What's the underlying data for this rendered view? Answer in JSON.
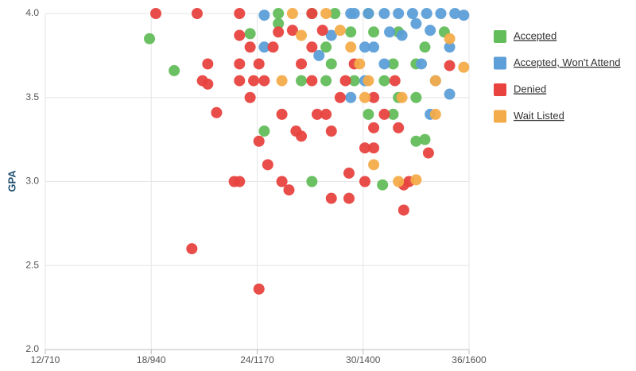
{
  "chart_data": {
    "type": "scatter",
    "y_label": "GPA",
    "xlim": [
      12,
      36
    ],
    "xticks": [
      {
        "value": 12,
        "label": "12/710"
      },
      {
        "value": 18,
        "label": "18/940"
      },
      {
        "value": 24,
        "label": "24/1170"
      },
      {
        "value": 30,
        "label": "30/1400"
      },
      {
        "value": 36,
        "label": "36/1600"
      }
    ],
    "ylim": [
      2,
      4
    ],
    "yticks": [
      {
        "value": 2,
        "label": "2.0"
      },
      2.5,
      {
        "value": 3,
        "label": "3.0"
      },
      3.5,
      {
        "value": 4,
        "label": "4.0"
      }
    ],
    "grid": true,
    "legend": "right",
    "series": [
      {
        "name": "Accepted",
        "color": "#62bd5a",
        "x": [
          17.9,
          19.3,
          24.4,
          27.1,
          23.6,
          25.2,
          27.1,
          28.4,
          30.3,
          26.5,
          27.9,
          25.2,
          27.9,
          28.2,
          29.5,
          30.3,
          31.1,
          31.7,
          33.0,
          33.5,
          32.0,
          33.0,
          33.0,
          31.7,
          31.2,
          33.5,
          34.6,
          32.0,
          30.6,
          29.3
        ],
        "y": [
          3.85,
          3.66,
          3.3,
          3.0,
          3.88,
          4.0,
          4.0,
          4.0,
          4.0,
          3.6,
          3.6,
          3.94,
          3.8,
          3.7,
          3.6,
          3.4,
          2.98,
          3.4,
          3.24,
          3.25,
          3.5,
          3.5,
          3.7,
          3.7,
          3.6,
          3.8,
          3.89,
          3.89,
          3.89,
          3.89
        ]
      },
      {
        "name": "Accepted, Won't Attend",
        "color": "#5d9fd8",
        "x": [
          24.4,
          24.4,
          29.3,
          30.1,
          31.2,
          32.0,
          32.8,
          33.6,
          34.4,
          35.2,
          35.7,
          31.2,
          30.3,
          29.5,
          32.2,
          33.0,
          33.8,
          34.9,
          34.9,
          34.1,
          33.8,
          28.2,
          27.5,
          30.6,
          29.3,
          30.1,
          33.3,
          31.5
        ],
        "y": [
          3.99,
          3.8,
          3.5,
          3.6,
          3.7,
          4.0,
          4.0,
          4.0,
          4.0,
          4.0,
          3.99,
          4.0,
          4.0,
          4.0,
          3.87,
          3.94,
          3.9,
          3.8,
          3.52,
          3.6,
          3.4,
          3.87,
          3.75,
          3.8,
          4.0,
          3.8,
          3.7,
          3.89
        ]
      },
      {
        "name": "Denied",
        "color": "#e8433f",
        "x": [
          18.26,
          20.6,
          23.0,
          20.3,
          24.1,
          22.7,
          23.0,
          21.7,
          21.2,
          20.9,
          21.2,
          23.0,
          23.6,
          24.1,
          24.6,
          25.4,
          25.8,
          25.4,
          26.2,
          26.5,
          28.2,
          29.2,
          28.2,
          29.2,
          30.1,
          30.1,
          30.6,
          30.6,
          32.3,
          32.3,
          32.6,
          33.7,
          32.0,
          23.0,
          23.6,
          24.1,
          24.4,
          24.9,
          25.2,
          26.0,
          26.5,
          27.1,
          27.4,
          27.9,
          28.7,
          29.0,
          29.5,
          27.7,
          27.1,
          30.6,
          31.2,
          31.8,
          34.9,
          27.1,
          23.8,
          23.0
        ],
        "y": [
          4.0,
          4.0,
          4.0,
          2.6,
          2.36,
          3.0,
          3.0,
          3.41,
          3.7,
          3.6,
          3.58,
          3.6,
          3.5,
          3.24,
          3.1,
          3.0,
          2.95,
          3.4,
          3.3,
          3.27,
          2.9,
          2.9,
          3.3,
          3.05,
          3.0,
          3.2,
          3.2,
          3.32,
          2.83,
          2.98,
          3.0,
          3.17,
          3.32,
          3.7,
          3.8,
          3.7,
          3.6,
          3.8,
          3.89,
          3.9,
          3.7,
          3.6,
          3.4,
          3.4,
          3.5,
          3.6,
          3.7,
          3.9,
          4.0,
          3.5,
          3.4,
          3.6,
          3.69,
          3.8,
          3.6,
          3.87
        ]
      },
      {
        "name": "Wait Listed",
        "color": "#f4ac4a",
        "x": [
          26.0,
          27.9,
          25.4,
          26.5,
          29.3,
          29.8,
          30.6,
          32.0,
          33.0,
          34.1,
          35.7,
          34.9,
          34.1,
          30.3,
          32.2,
          28.7,
          30.1
        ],
        "y": [
          4.0,
          4.0,
          3.6,
          3.87,
          3.8,
          3.7,
          3.1,
          3.0,
          3.01,
          3.6,
          3.68,
          3.85,
          3.4,
          3.6,
          3.5,
          3.9,
          3.5
        ]
      }
    ]
  }
}
